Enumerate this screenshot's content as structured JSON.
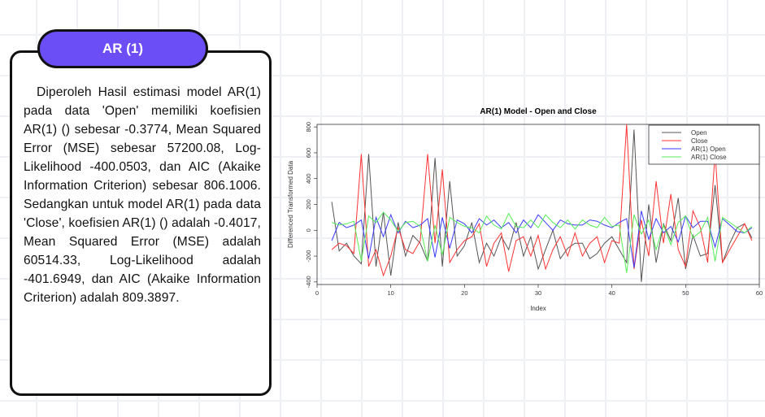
{
  "slide": {
    "badge_label": "AR (1)",
    "body_text": "Diperoleh Hasil estimasi model AR(1) pada data 'Open' memiliki koefisien AR(1) () sebesar -0.3774, Mean Squared Error (MSE) sebesar 57200.08, Log-Likelihood -400.0503, dan AIC (Akaike Information Criterion) sebesar 806.1006. Sedangkan untuk model AR(1) pada data 'Close', koefisien AR(1) () adalah -0.4017, Mean Squared Error (MSE) adalah 60514.33, Log-Likelihood adalah -401.6949, dan AIC (Akaike Information Criterion) adalah 809.3897."
  },
  "chart_data": {
    "type": "line",
    "title": "AR(1) Model - Open and Close",
    "xlabel": "Index",
    "ylabel": "Differenced Transformed Data",
    "xlim": [
      0,
      60
    ],
    "ylim": [
      -420,
      820
    ],
    "xticks": [
      0,
      10,
      20,
      30,
      40,
      50,
      60
    ],
    "yticks": [
      -400,
      -200,
      0,
      200,
      400,
      600,
      800
    ],
    "legend_position": "top-right",
    "x": [
      2,
      3,
      4,
      5,
      6,
      7,
      8,
      9,
      10,
      11,
      12,
      13,
      14,
      15,
      16,
      17,
      18,
      19,
      20,
      21,
      22,
      23,
      24,
      25,
      26,
      27,
      28,
      29,
      30,
      31,
      32,
      33,
      34,
      35,
      36,
      37,
      38,
      39,
      40,
      41,
      42,
      43,
      44,
      45,
      46,
      47,
      48,
      49,
      50,
      51,
      52,
      53,
      54,
      55,
      56,
      57,
      58,
      59
    ],
    "series": [
      {
        "name": "Open",
        "color": "#555555",
        "values": [
          220,
          -160,
          -100,
          -200,
          -260,
          590,
          -280,
          140,
          -350,
          60,
          -200,
          -40,
          -100,
          -240,
          560,
          -280,
          380,
          -200,
          -120,
          60,
          -250,
          -100,
          -200,
          -50,
          -150,
          60,
          -200,
          -50,
          -300,
          -150,
          0,
          -220,
          -140,
          -100,
          -100,
          -220,
          -180,
          -100,
          -50,
          -150,
          -250,
          780,
          -400,
          200,
          -250,
          50,
          -80,
          250,
          -300,
          -40,
          -200,
          -180,
          350,
          -250,
          -100,
          20,
          50,
          -60
        ]
      },
      {
        "name": "Close",
        "color": "#ff3333",
        "values": [
          -150,
          -100,
          -120,
          -180,
          590,
          -280,
          -150,
          -350,
          -200,
          20,
          -150,
          -180,
          -80,
          590,
          -100,
          470,
          -250,
          -150,
          -80,
          -50,
          50,
          -280,
          -100,
          -20,
          -320,
          -80,
          -50,
          -200,
          -40,
          -300,
          -150,
          -50,
          -200,
          -20,
          -200,
          -100,
          -50,
          -250,
          -80,
          -100,
          820,
          -300,
          80,
          -200,
          380,
          -100,
          280,
          -150,
          -280,
          150,
          20,
          -250,
          600,
          -250,
          -150,
          -50,
          50,
          -80
        ]
      },
      {
        "name": "AR(1) Open",
        "color": "#3b3bff",
        "values": [
          -80,
          60,
          20,
          40,
          80,
          -220,
          100,
          -50,
          120,
          -20,
          70,
          20,
          40,
          90,
          -210,
          100,
          -140,
          80,
          50,
          -20,
          90,
          40,
          80,
          20,
          60,
          -20,
          80,
          20,
          120,
          60,
          0,
          80,
          50,
          40,
          40,
          80,
          70,
          40,
          20,
          60,
          90,
          -290,
          150,
          -70,
          90,
          -20,
          30,
          -90,
          110,
          20,
          70,
          70,
          -130,
          90,
          40,
          -10,
          -20,
          20
        ]
      },
      {
        "name": "AR(1) Close",
        "color": "#55ee55",
        "values": [
          60,
          40,
          50,
          70,
          -240,
          110,
          60,
          140,
          80,
          -10,
          60,
          70,
          30,
          -240,
          40,
          -190,
          100,
          60,
          30,
          20,
          -20,
          110,
          40,
          10,
          130,
          30,
          20,
          80,
          20,
          120,
          60,
          20,
          80,
          10,
          80,
          40,
          20,
          100,
          30,
          40,
          -330,
          120,
          -30,
          80,
          -150,
          40,
          -110,
          60,
          110,
          -60,
          -10,
          100,
          -240,
          100,
          60,
          20,
          -20,
          30
        ]
      }
    ]
  }
}
